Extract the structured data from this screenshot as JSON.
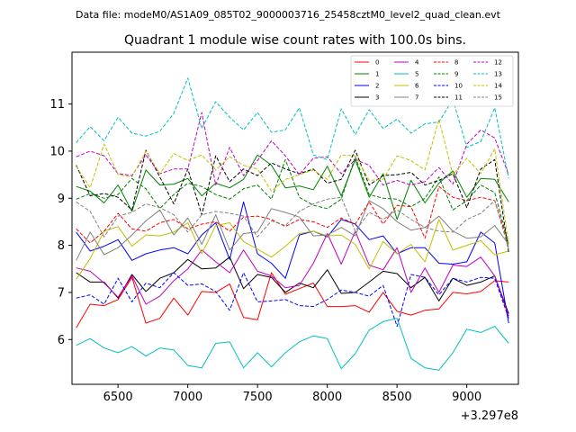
{
  "file_header": "Data file: modeM0/AS1A09_085T02_9000003716_25458cztM0_level2_quad_clean.evt",
  "chart_data": {
    "type": "line",
    "title": "Quadrant 1 module wise count rates with 100.0s bins.",
    "xlabel": "",
    "ylabel": "",
    "x_offset_label": "+3.297e8",
    "xlim": [
      6170,
      9370
    ],
    "ylim": [
      5.05,
      12.1
    ],
    "x_ticks": [
      6500,
      7000,
      7500,
      8000,
      8500,
      9000
    ],
    "y_ticks": [
      6,
      7,
      8,
      9,
      10,
      11
    ],
    "x": [
      6200,
      6300,
      6400,
      6500,
      6600,
      6700,
      6800,
      6900,
      7000,
      7100,
      7200,
      7300,
      7400,
      7500,
      7600,
      7700,
      7800,
      7900,
      8000,
      8100,
      8200,
      8300,
      8400,
      8500,
      8600,
      8700,
      8800,
      8900,
      9000,
      9100,
      9200,
      9300
    ],
    "series": [
      {
        "name": "0",
        "color": "#ff0000",
        "dash": false,
        "values": [
          6.25,
          6.75,
          6.72,
          6.85,
          7.32,
          6.35,
          6.45,
          6.88,
          6.52,
          7.02,
          7.0,
          7.18,
          6.47,
          6.42,
          7.42,
          6.96,
          7.08,
          7.2,
          6.7,
          6.7,
          6.72,
          6.58,
          7.0,
          6.6,
          6.52,
          6.62,
          6.65,
          7.0,
          6.97,
          7.02,
          7.25,
          7.22
        ]
      },
      {
        "name": "1",
        "color": "#008000",
        "dash": false,
        "values": [
          9.25,
          9.15,
          8.9,
          9.28,
          8.72,
          9.6,
          9.28,
          9.3,
          9.42,
          9.05,
          9.32,
          9.22,
          9.4,
          9.92,
          9.7,
          9.22,
          9.26,
          9.18,
          9.68,
          9.05,
          9.82,
          9.02,
          9.52,
          8.55,
          9.38,
          8.9,
          9.32,
          9.58,
          9.02,
          9.42,
          9.4,
          8.92
        ]
      },
      {
        "name": "2",
        "color": "#0000ff",
        "dash": false,
        "values": [
          8.28,
          7.88,
          7.98,
          8.12,
          7.68,
          7.82,
          7.9,
          7.95,
          7.82,
          8.22,
          8.48,
          7.7,
          8.92,
          7.82,
          7.62,
          7.3,
          8.22,
          8.3,
          8.18,
          8.55,
          8.45,
          8.12,
          8.2,
          7.82,
          7.95,
          7.95,
          7.62,
          7.6,
          7.65,
          8.28,
          8.05,
          6.35
        ]
      },
      {
        "name": "3",
        "color": "#000000",
        "dash": false,
        "values": [
          7.42,
          7.22,
          7.22,
          6.88,
          7.38,
          7.02,
          7.3,
          7.42,
          7.7,
          7.5,
          7.52,
          7.75,
          7.08,
          7.38,
          7.32,
          7.0,
          7.2,
          7.1,
          7.48,
          6.98,
          7.0,
          7.22,
          7.45,
          7.4,
          7.1,
          7.32,
          6.82,
          7.3,
          7.15,
          7.22,
          7.35,
          6.55
        ]
      },
      {
        "name": "4",
        "color": "#c000c0",
        "dash": false,
        "values": [
          7.52,
          7.45,
          7.2,
          6.9,
          7.35,
          6.75,
          6.92,
          7.25,
          7.5,
          7.9,
          7.65,
          7.42,
          7.9,
          7.45,
          7.35,
          7.1,
          7.15,
          7.62,
          8.25,
          7.6,
          8.3,
          7.58,
          7.48,
          7.95,
          7.0,
          7.52,
          7.0,
          7.58,
          7.55,
          7.75,
          7.35,
          6.5
        ]
      },
      {
        "name": "5",
        "color": "#00c0c0",
        "dash": false,
        "values": [
          5.88,
          6.02,
          5.82,
          5.72,
          5.85,
          5.65,
          5.82,
          5.78,
          5.45,
          5.4,
          5.92,
          5.95,
          5.4,
          5.72,
          5.42,
          5.72,
          5.95,
          6.08,
          6.02,
          5.38,
          5.7,
          6.2,
          6.38,
          6.45,
          5.6,
          5.4,
          5.35,
          5.72,
          6.22,
          6.15,
          6.28,
          5.92
        ]
      },
      {
        "name": "6",
        "color": "#c0c000",
        "dash": false,
        "values": [
          7.28,
          7.72,
          8.3,
          8.4,
          7.98,
          8.22,
          8.2,
          8.28,
          8.48,
          7.82,
          8.42,
          8.48,
          8.08,
          7.92,
          7.75,
          7.98,
          8.25,
          8.3,
          8.2,
          8.22,
          8.02,
          7.5,
          8.08,
          7.82,
          8.02,
          7.65,
          8.55,
          7.9,
          8.0,
          8.1,
          7.8,
          7.88
        ]
      },
      {
        "name": "7",
        "color": "#808080",
        "dash": false,
        "values": [
          7.68,
          8.28,
          7.8,
          7.95,
          8.22,
          8.52,
          8.75,
          8.22,
          8.58,
          8.02,
          8.65,
          7.9,
          8.25,
          8.28,
          8.78,
          8.7,
          8.6,
          8.2,
          8.22,
          8.38,
          8.2,
          8.95,
          8.78,
          8.5,
          8.32,
          8.38,
          8.62,
          8.3,
          8.15,
          8.18,
          8.42,
          8.02
        ]
      },
      {
        "name": "8",
        "color": "#ff0000",
        "dash": true,
        "values": [
          8.35,
          8.05,
          8.3,
          8.68,
          8.35,
          8.3,
          8.48,
          8.55,
          8.35,
          8.45,
          8.5,
          8.3,
          8.6,
          8.62,
          8.55,
          8.4,
          8.55,
          8.5,
          8.38,
          8.58,
          8.45,
          8.92,
          8.45,
          8.85,
          8.82,
          8.15,
          9.25,
          9.02,
          8.95,
          9.02,
          8.95,
          8.02
        ]
      },
      {
        "name": "9",
        "color": "#008000",
        "dash": true,
        "values": [
          8.98,
          9.1,
          9.0,
          9.08,
          9.42,
          9.2,
          8.78,
          9.08,
          9.32,
          9.25,
          9.08,
          8.98,
          9.2,
          9.28,
          8.98,
          9.82,
          9.02,
          8.85,
          8.78,
          8.98,
          9.88,
          9.08,
          9.0,
          8.98,
          8.82,
          9.0,
          9.45,
          8.75,
          8.95,
          9.28,
          9.12,
          8.02
        ]
      },
      {
        "name": "10",
        "color": "#0000ff",
        "dash": true,
        "values": [
          6.88,
          6.95,
          6.75,
          7.3,
          6.8,
          7.2,
          7.1,
          7.42,
          7.15,
          7.18,
          7.02,
          6.62,
          7.42,
          6.8,
          6.82,
          6.85,
          6.72,
          6.7,
          6.85,
          7.05,
          7.0,
          6.92,
          7.15,
          6.28,
          7.38,
          7.32,
          6.95,
          7.3,
          7.22,
          7.32,
          7.3,
          6.45
        ]
      },
      {
        "name": "11",
        "color": "#000000",
        "dash": true,
        "values": [
          9.7,
          9.05,
          9.1,
          9.02,
          8.75,
          10.02,
          9.45,
          8.88,
          9.62,
          8.65,
          9.9,
          9.35,
          9.62,
          9.48,
          9.75,
          9.62,
          9.52,
          9.62,
          9.32,
          9.4,
          10.02,
          9.28,
          9.48,
          9.5,
          9.55,
          9.28,
          9.38,
          9.52,
          8.8,
          9.62,
          9.82,
          7.85
        ]
      },
      {
        "name": "12",
        "color": "#c000c0",
        "dash": true,
        "values": [
          9.88,
          10.0,
          9.9,
          9.52,
          9.48,
          9.92,
          9.52,
          9.62,
          9.62,
          10.82,
          9.28,
          10.08,
          9.48,
          9.8,
          10.22,
          9.9,
          9.5,
          9.85,
          9.88,
          9.52,
          9.82,
          9.7,
          9.28,
          9.38,
          9.28,
          9.35,
          9.65,
          9.3,
          10.15,
          10.45,
          10.28,
          9.5
        ]
      },
      {
        "name": "13",
        "color": "#00c0c0",
        "dash": true,
        "values": [
          10.18,
          10.52,
          10.22,
          10.72,
          10.38,
          10.32,
          10.42,
          10.8,
          11.55,
          10.48,
          11.05,
          10.72,
          10.45,
          10.82,
          10.4,
          10.45,
          10.92,
          9.92,
          9.82,
          10.9,
          10.35,
          10.88,
          10.48,
          10.68,
          10.38,
          10.58,
          10.62,
          11.1,
          10.08,
          10.2,
          10.92,
          9.42
        ]
      },
      {
        "name": "14",
        "color": "#c0c000",
        "dash": true,
        "values": [
          9.68,
          9.22,
          10.15,
          9.5,
          9.45,
          10.0,
          9.52,
          9.95,
          9.8,
          9.92,
          9.6,
          9.88,
          9.7,
          9.62,
          9.15,
          9.4,
          9.5,
          9.6,
          9.4,
          9.92,
          9.9,
          9.38,
          9.4,
          9.9,
          9.8,
          9.6,
          10.68,
          9.5,
          9.85,
          9.52,
          10.05,
          8.02
        ]
      },
      {
        "name": "15",
        "color": "#808080",
        "dash": true,
        "values": [
          8.92,
          8.72,
          8.18,
          8.62,
          8.7,
          8.88,
          8.8,
          8.65,
          8.28,
          8.65,
          8.72,
          8.68,
          8.62,
          8.18,
          8.52,
          8.42,
          8.72,
          8.88,
          8.98,
          9.02,
          8.3,
          8.7,
          8.55,
          8.75,
          8.55,
          8.38,
          8.3,
          8.28,
          8.55,
          8.68,
          8.95,
          7.92
        ]
      }
    ]
  }
}
